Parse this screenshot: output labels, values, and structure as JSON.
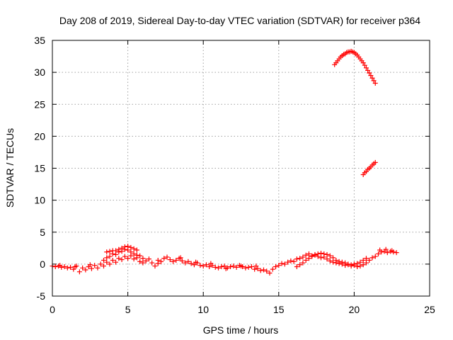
{
  "chart_data": {
    "type": "scatter",
    "title": "Day 208 of 2019, Sidereal Day-to-day VTEC variation (SDTVAR) for receiver p364",
    "xlabel": "GPS time / hours",
    "ylabel": "SDTVAR / TECUs",
    "xlim": [
      0,
      25
    ],
    "ylim": [
      -5,
      35
    ],
    "xticks": [
      0,
      5,
      10,
      15,
      20,
      25
    ],
    "yticks": [
      -5,
      0,
      5,
      10,
      15,
      20,
      25,
      30,
      35
    ],
    "grid": true,
    "marker": "plus",
    "color": "#ff0000",
    "series": [
      {
        "values": [
          [
            0.0,
            -0.3
          ],
          [
            0.2,
            -0.4
          ],
          [
            0.4,
            -0.3
          ],
          [
            0.6,
            -0.5
          ],
          [
            0.8,
            -0.4
          ],
          [
            1.0,
            -0.6
          ],
          [
            1.2,
            -0.5
          ],
          [
            1.4,
            -0.8
          ],
          [
            1.6,
            -0.3
          ],
          [
            1.8,
            -1.2
          ],
          [
            2.0,
            -0.6
          ],
          [
            2.2,
            -0.9
          ],
          [
            2.4,
            -0.4
          ],
          [
            2.6,
            -0.7
          ],
          [
            2.8,
            -0.2
          ],
          [
            3.0,
            -0.6
          ],
          [
            3.2,
            0.0
          ],
          [
            3.4,
            -0.3
          ],
          [
            3.6,
            0.3
          ],
          [
            3.8,
            0.0
          ],
          [
            4.0,
            0.6
          ],
          [
            4.2,
            0.3
          ],
          [
            4.4,
            0.9
          ],
          [
            4.6,
            0.7
          ],
          [
            4.8,
            1.2
          ],
          [
            5.0,
            0.9
          ],
          [
            5.2,
            1.3
          ],
          [
            5.4,
            0.8
          ],
          [
            5.6,
            1.0
          ],
          [
            5.8,
            0.4
          ],
          [
            6.0,
            0.2
          ],
          [
            6.2,
            0.5
          ],
          [
            6.4,
            0.8
          ],
          [
            6.6,
            0.2
          ],
          [
            6.8,
            -0.3
          ],
          [
            7.0,
            0.1
          ],
          [
            7.2,
            0.4
          ],
          [
            7.4,
            0.9
          ],
          [
            7.6,
            1.1
          ],
          [
            7.8,
            0.7
          ],
          [
            8.0,
            0.4
          ],
          [
            8.2,
            0.6
          ],
          [
            8.4,
            0.9
          ],
          [
            8.6,
            0.5
          ],
          [
            8.8,
            0.2
          ],
          [
            9.0,
            0.4
          ],
          [
            9.2,
            0.1
          ],
          [
            9.4,
            -0.1
          ],
          [
            9.6,
            0.2
          ],
          [
            9.8,
            -0.2
          ],
          [
            10.0,
            -0.3
          ],
          [
            10.2,
            -0.1
          ],
          [
            10.4,
            -0.4
          ],
          [
            10.6,
            -0.2
          ],
          [
            10.8,
            -0.5
          ],
          [
            11.0,
            -0.6
          ],
          [
            11.2,
            -0.4
          ],
          [
            11.4,
            -0.3
          ],
          [
            11.6,
            -0.6
          ],
          [
            11.8,
            -0.4
          ],
          [
            12.0,
            -0.3
          ],
          [
            12.2,
            -0.5
          ],
          [
            12.4,
            -0.2
          ],
          [
            12.6,
            -0.4
          ],
          [
            12.8,
            -0.6
          ],
          [
            13.0,
            -0.5
          ],
          [
            13.2,
            -0.4
          ],
          [
            13.4,
            -0.8
          ],
          [
            13.6,
            -0.7
          ],
          [
            13.8,
            -1.0
          ],
          [
            14.0,
            -0.9
          ],
          [
            14.2,
            -1.1
          ],
          [
            14.4,
            -1.4
          ],
          [
            14.6,
            -0.8
          ],
          [
            14.8,
            -0.4
          ],
          [
            15.0,
            -0.2
          ],
          [
            15.2,
            0.1
          ],
          [
            15.4,
            0.0
          ],
          [
            15.6,
            0.3
          ],
          [
            15.8,
            0.5
          ],
          [
            16.0,
            0.4
          ],
          [
            16.2,
            0.8
          ],
          [
            16.4,
            0.9
          ],
          [
            16.6,
            1.1
          ],
          [
            16.8,
            1.4
          ],
          [
            17.0,
            1.6
          ],
          [
            17.2,
            1.3
          ],
          [
            17.4,
            1.5
          ],
          [
            17.6,
            1.2
          ],
          [
            17.8,
            1.0
          ],
          [
            18.0,
            1.1
          ],
          [
            18.2,
            0.8
          ],
          [
            18.4,
            0.5
          ],
          [
            18.6,
            0.3
          ],
          [
            18.8,
            0.2
          ],
          [
            19.0,
            0.1
          ],
          [
            19.2,
            0.0
          ],
          [
            19.4,
            -0.2
          ],
          [
            19.6,
            -0.1
          ],
          [
            19.8,
            -0.3
          ],
          [
            20.0,
            -0.2
          ],
          [
            20.2,
            -0.4
          ],
          [
            20.4,
            -0.3
          ],
          [
            20.6,
            -0.1
          ],
          [
            20.8,
            0.2
          ],
          [
            21.0,
            0.6
          ],
          [
            21.2,
            1.0
          ],
          [
            21.4,
            1.2
          ],
          [
            3.4,
            0.6
          ],
          [
            3.6,
            1.0
          ],
          [
            3.8,
            1.2
          ],
          [
            4.0,
            1.6
          ],
          [
            4.2,
            1.5
          ],
          [
            4.4,
            1.9
          ],
          [
            4.6,
            2.0
          ],
          [
            4.8,
            2.3
          ],
          [
            5.0,
            2.2
          ],
          [
            5.2,
            1.9
          ],
          [
            5.4,
            1.6
          ],
          [
            5.6,
            1.4
          ],
          [
            5.8,
            1.3
          ],
          [
            6.0,
            0.9
          ],
          [
            3.6,
            1.9
          ],
          [
            3.8,
            2.0
          ],
          [
            4.0,
            2.1
          ],
          [
            4.2,
            2.1
          ],
          [
            4.4,
            2.3
          ],
          [
            4.6,
            2.5
          ],
          [
            4.8,
            2.7
          ],
          [
            5.0,
            2.8
          ],
          [
            5.2,
            2.6
          ],
          [
            5.4,
            2.4
          ],
          [
            5.6,
            2.2
          ],
          [
            16.2,
            -0.4
          ],
          [
            16.4,
            -0.1
          ],
          [
            16.6,
            0.2
          ],
          [
            16.8,
            0.6
          ],
          [
            17.0,
            0.9
          ],
          [
            17.2,
            1.2
          ],
          [
            17.4,
            1.4
          ],
          [
            17.6,
            1.6
          ],
          [
            17.8,
            1.7
          ],
          [
            18.0,
            1.6
          ],
          [
            18.2,
            1.5
          ],
          [
            18.4,
            1.3
          ],
          [
            18.6,
            1.0
          ],
          [
            18.8,
            0.6
          ],
          [
            19.0,
            0.4
          ],
          [
            19.2,
            0.3
          ],
          [
            19.4,
            0.2
          ],
          [
            19.6,
            0.0
          ],
          [
            19.8,
            -0.1
          ],
          [
            20.0,
            0.0
          ],
          [
            20.2,
            0.1
          ],
          [
            20.4,
            0.3
          ],
          [
            20.6,
            0.6
          ],
          [
            20.8,
            0.9
          ],
          [
            0.5,
            -0.2
          ],
          [
            1.5,
            -0.4
          ],
          [
            2.5,
            -0.1
          ],
          [
            7.0,
            0.6
          ],
          [
            8.5,
            1.0
          ],
          [
            9.5,
            0.3
          ],
          [
            10.5,
            0.1
          ],
          [
            11.5,
            -0.7
          ],
          [
            12.5,
            -0.3
          ],
          [
            13.5,
            -0.3
          ],
          [
            21.6,
            1.6
          ],
          [
            21.8,
            1.9
          ],
          [
            22.0,
            2.0
          ],
          [
            22.2,
            1.8
          ],
          [
            22.4,
            2.0
          ],
          [
            22.6,
            1.9
          ],
          [
            22.8,
            1.8
          ],
          [
            21.7,
            2.2
          ],
          [
            22.1,
            2.3
          ],
          [
            22.5,
            2.1
          ]
        ]
      },
      {
        "values": [
          [
            18.7,
            31.2
          ],
          [
            18.8,
            31.5
          ],
          [
            18.9,
            31.8
          ],
          [
            19.0,
            32.1
          ],
          [
            19.1,
            32.4
          ],
          [
            19.2,
            32.6
          ],
          [
            19.3,
            32.8
          ],
          [
            19.4,
            32.9
          ],
          [
            19.5,
            33.1
          ],
          [
            19.6,
            33.2
          ],
          [
            19.7,
            33.2
          ],
          [
            19.8,
            33.3
          ],
          [
            19.9,
            33.2
          ],
          [
            20.0,
            33.1
          ],
          [
            20.1,
            32.9
          ],
          [
            20.2,
            32.7
          ],
          [
            20.3,
            32.4
          ],
          [
            20.4,
            32.1
          ],
          [
            20.5,
            31.8
          ],
          [
            20.6,
            31.5
          ],
          [
            20.7,
            31.1
          ],
          [
            20.8,
            30.7
          ],
          [
            20.9,
            30.3
          ],
          [
            21.0,
            29.9
          ],
          [
            21.1,
            29.5
          ],
          [
            21.2,
            29.1
          ],
          [
            21.3,
            28.7
          ],
          [
            21.4,
            28.3
          ]
        ]
      },
      {
        "values": [
          [
            20.6,
            14.0
          ],
          [
            20.7,
            14.3
          ],
          [
            20.8,
            14.5
          ],
          [
            20.9,
            14.8
          ],
          [
            21.0,
            15.0
          ],
          [
            21.1,
            15.2
          ],
          [
            21.2,
            15.5
          ],
          [
            21.3,
            15.7
          ],
          [
            21.4,
            15.9
          ]
        ]
      }
    ]
  }
}
